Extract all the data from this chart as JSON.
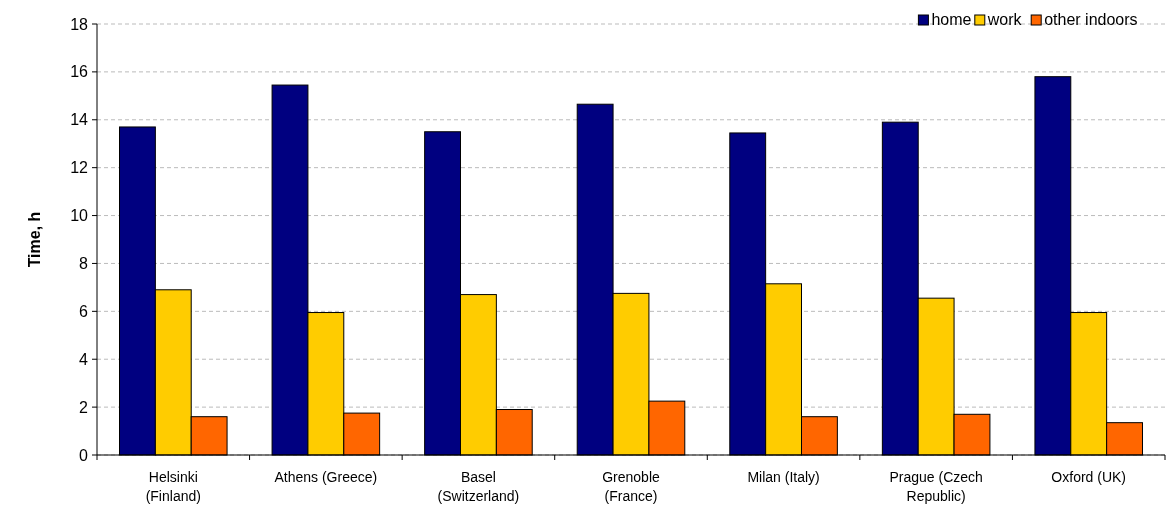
{
  "chart_data": {
    "type": "bar",
    "ylabel": "Time, h",
    "categories": [
      "Helsinki (Finland)",
      "Athens (Greece)",
      "Basel (Switzerland)",
      "Grenoble (France)",
      "Milan (Italy)",
      "Prague (Czech Republic)",
      "Oxford (UK)"
    ],
    "series": [
      {
        "name": "home",
        "color": "#000080",
        "values": [
          13.7,
          15.45,
          13.5,
          14.65,
          13.45,
          13.9,
          15.8
        ]
      },
      {
        "name": "work",
        "color": "#ffcc00",
        "values": [
          6.9,
          5.95,
          6.7,
          6.75,
          7.15,
          6.55,
          5.95
        ]
      },
      {
        "name": "other indoors",
        "color": "#ff6600",
        "values": [
          1.6,
          1.75,
          1.9,
          2.25,
          1.6,
          1.7,
          1.35
        ]
      }
    ],
    "ylim": [
      0,
      18
    ],
    "yticks": [
      0,
      2,
      4,
      6,
      8,
      10,
      12,
      14,
      16,
      18
    ],
    "grid": "y",
    "legend": "top right"
  }
}
